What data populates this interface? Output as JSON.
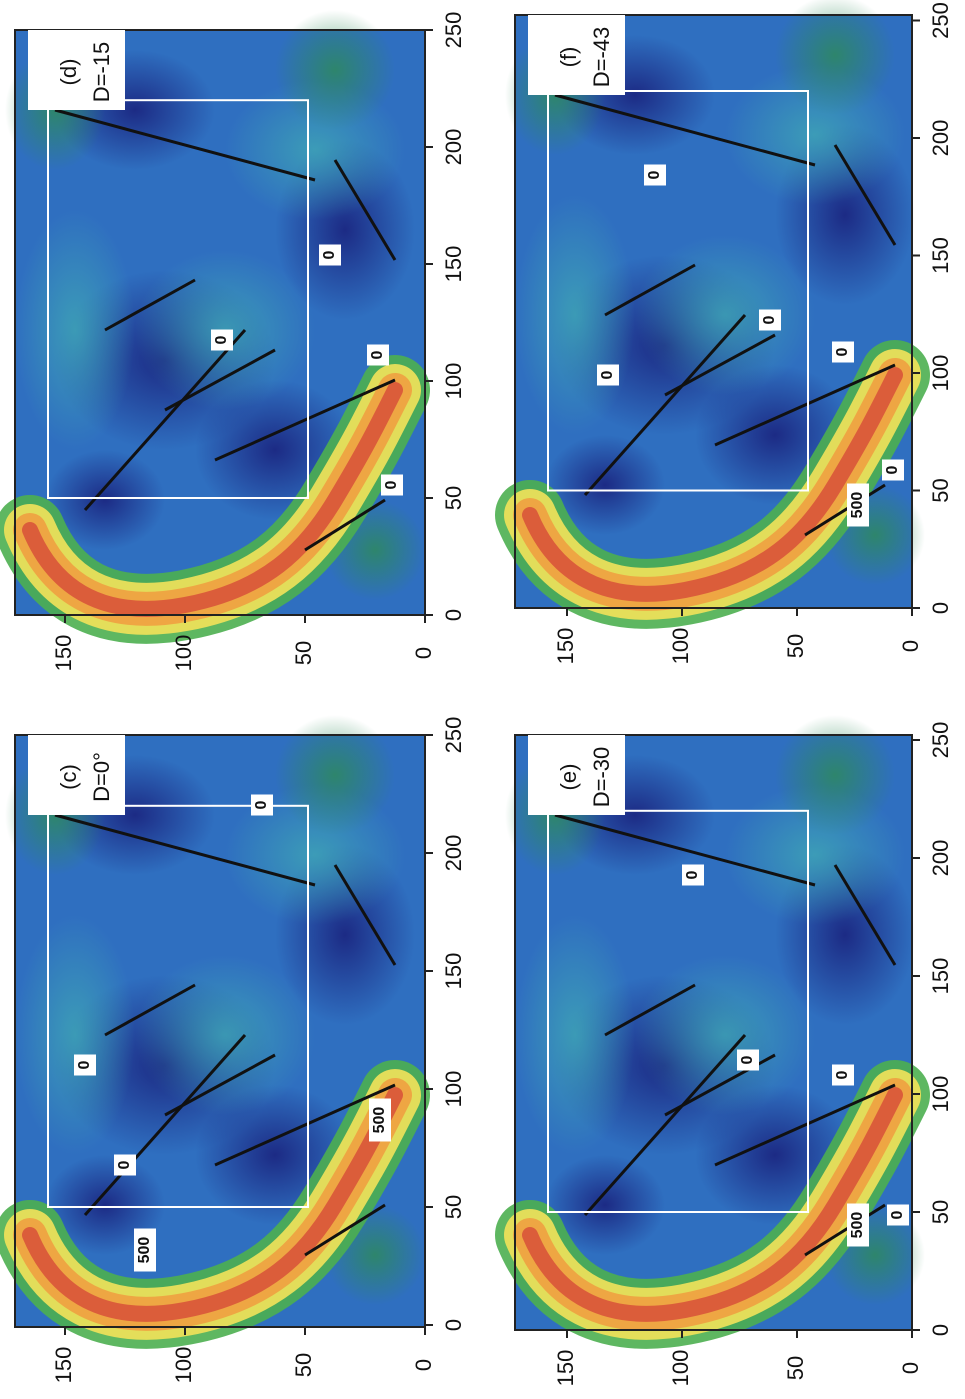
{
  "panels": [
    {
      "label": "(c)",
      "d": "D=0°",
      "contours": [
        "0",
        "0",
        "500",
        "500",
        "0"
      ]
    },
    {
      "label": "(d)",
      "d": "D=-15",
      "contours": [
        "0",
        "0",
        "0",
        "0"
      ]
    },
    {
      "label": "(e)",
      "d": "D=-30",
      "contours": [
        "0",
        "0",
        "0",
        "500",
        "0"
      ]
    },
    {
      "label": "(f)",
      "d": "D=-43",
      "contours": [
        "0",
        "0",
        "0",
        "0",
        "500",
        "0"
      ]
    }
  ],
  "x_ticks": [
    0,
    50,
    100,
    150,
    200,
    250
  ],
  "y_ticks": [
    0,
    50,
    100,
    150
  ]
}
